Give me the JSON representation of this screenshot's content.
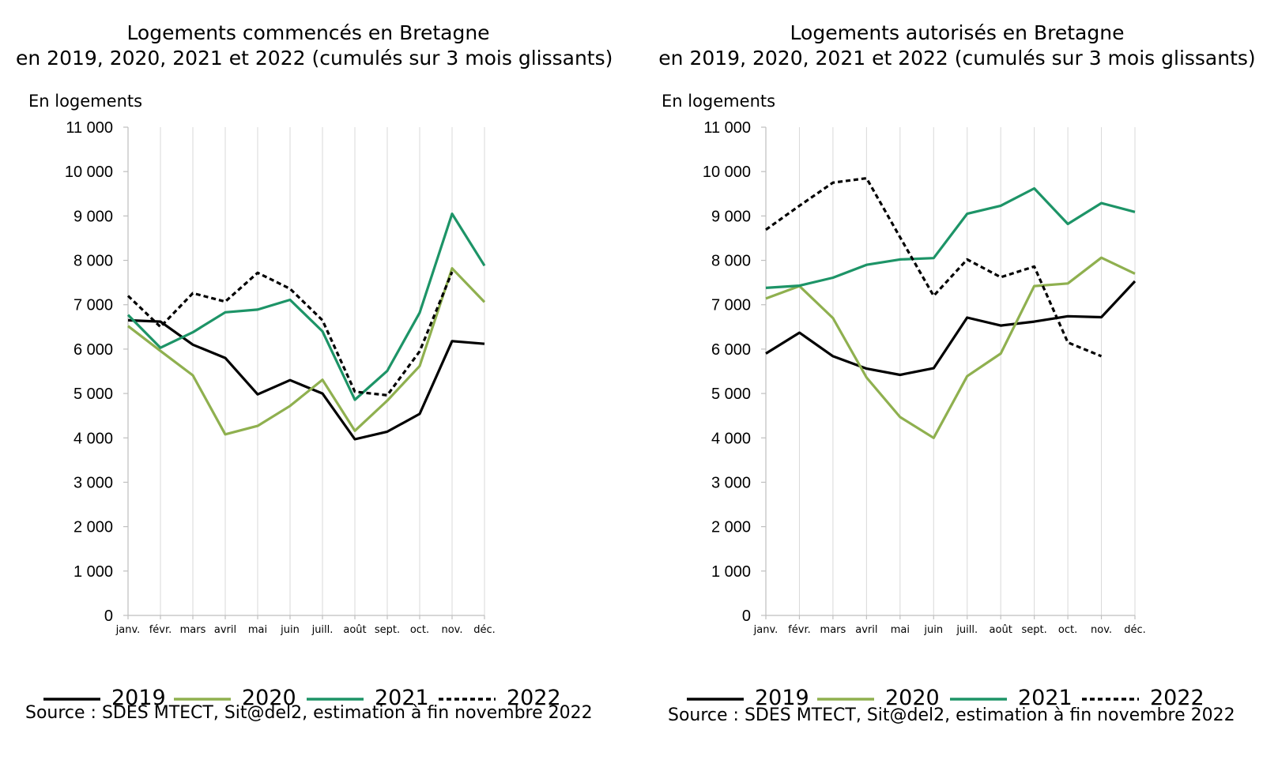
{
  "charts": [
    {
      "title_line1": "Logements commencés en Bretagne",
      "title_line2": "en 2019, 2020, 2021 et 2022  (cumulés sur 3 mois glissants)",
      "ylabel": "En logements",
      "source": "Source : SDES MTECT, Sit@del2, estimation à fin novembre 2022"
    },
    {
      "title_line1": "Logements autorisés en Bretagne",
      "title_line2": "en 2019, 2020, 2021 et 2022 (cumulés sur 3 mois glissants)",
      "ylabel": "En logements",
      "source": "Source : SDES MTECT, Sit@del2, estimation à fin novembre 2022"
    }
  ],
  "legend": [
    {
      "label": "2019",
      "color": "#000000",
      "dash": "solid"
    },
    {
      "label": "2020",
      "color": "#8fb04f",
      "dash": "solid"
    },
    {
      "label": "2021",
      "color": "#1d9467",
      "dash": "solid"
    },
    {
      "label": "2022",
      "color": "#000000",
      "dash": "dashed"
    }
  ],
  "chart_data": [
    {
      "type": "line",
      "title": "Logements commencés en Bretagne en 2019, 2020, 2021 et 2022  (cumulés sur 3 mois glissants)",
      "ylabel": "En logements",
      "ylim": [
        0,
        11000
      ],
      "yticks": [
        0,
        1000,
        2000,
        3000,
        4000,
        5000,
        6000,
        7000,
        8000,
        9000,
        10000,
        11000
      ],
      "ytick_labels": [
        "0",
        "1 000",
        "2 000",
        "3 000",
        "4 000",
        "5 000",
        "6 000",
        "7 000",
        "8 000",
        "9 000",
        "10 000",
        "11 000"
      ],
      "categories": [
        "janv.",
        "févr.",
        "mars",
        "avril",
        "mai",
        "juin",
        "juill.",
        "août",
        "sept.",
        "oct.",
        "nov.",
        "déc."
      ],
      "grid": "vertical",
      "series": [
        {
          "name": "2019",
          "color": "#000000",
          "dash": "solid",
          "values": [
            6650,
            6620,
            6100,
            5800,
            4980,
            5300,
            5000,
            3970,
            4140,
            4540,
            6180,
            6120
          ]
        },
        {
          "name": "2020",
          "color": "#8fb04f",
          "dash": "solid",
          "values": [
            6520,
            5960,
            5410,
            4080,
            4270,
            4720,
            5310,
            4160,
            4840,
            5620,
            7820,
            7060
          ]
        },
        {
          "name": "2021",
          "color": "#1d9467",
          "dash": "solid",
          "values": [
            6770,
            6030,
            6380,
            6830,
            6890,
            7110,
            6400,
            4860,
            5510,
            6820,
            9050,
            7880
          ]
        },
        {
          "name": "2022",
          "color": "#000000",
          "dash": "dashed",
          "values": [
            7200,
            6500,
            7260,
            7070,
            7720,
            7360,
            6650,
            5040,
            4960,
            5950,
            7740,
            null
          ]
        }
      ]
    },
    {
      "type": "line",
      "title": "Logements autorisés en Bretagne en 2019, 2020, 2021 et 2022 (cumulés sur 3 mois glissants)",
      "ylabel": "En logements",
      "ylim": [
        0,
        11000
      ],
      "yticks": [
        0,
        1000,
        2000,
        3000,
        4000,
        5000,
        6000,
        7000,
        8000,
        9000,
        10000,
        11000
      ],
      "ytick_labels": [
        "0",
        "1 000",
        "2 000",
        "3 000",
        "4 000",
        "5 000",
        "6 000",
        "7 000",
        "8 000",
        "9 000",
        "10 000",
        "11 000"
      ],
      "categories": [
        "janv.",
        "févr.",
        "mars",
        "avril",
        "mai",
        "juin",
        "juill.",
        "août",
        "sept.",
        "oct.",
        "nov.",
        "déc."
      ],
      "grid": "vertical",
      "series": [
        {
          "name": "2019",
          "color": "#000000",
          "dash": "solid",
          "values": [
            5900,
            6370,
            5840,
            5560,
            5420,
            5570,
            6710,
            6530,
            6620,
            6740,
            6720,
            7530
          ]
        },
        {
          "name": "2020",
          "color": "#8fb04f",
          "dash": "solid",
          "values": [
            7140,
            7420,
            6700,
            5360,
            4470,
            4000,
            5390,
            5900,
            7420,
            7480,
            8060,
            7700
          ]
        },
        {
          "name": "2021",
          "color": "#1d9467",
          "dash": "solid",
          "values": [
            7380,
            7430,
            7610,
            7900,
            8020,
            8050,
            9050,
            9230,
            9620,
            8820,
            9290,
            9090
          ]
        },
        {
          "name": "2022",
          "color": "#000000",
          "dash": "dashed",
          "values": [
            8690,
            9230,
            9750,
            9850,
            8520,
            7200,
            8020,
            7620,
            7860,
            6150,
            5840,
            null
          ]
        }
      ]
    }
  ]
}
